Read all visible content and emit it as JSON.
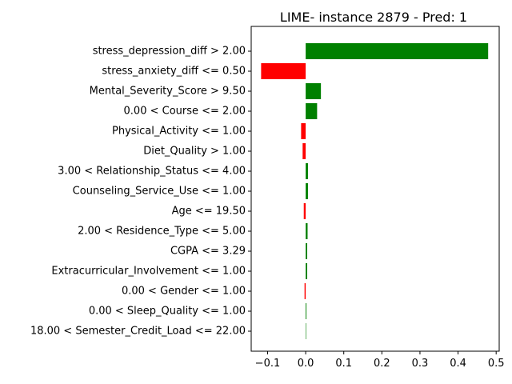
{
  "chart_data": {
    "type": "bar",
    "orientation": "horizontal",
    "title": "LIME- instance 2879 - Pred: 1",
    "xlabel": "",
    "ylabel": "",
    "xlim": [
      -0.143,
      0.508
    ],
    "xticks": [
      -0.1,
      0.0,
      0.1,
      0.2,
      0.3,
      0.4,
      0.5
    ],
    "xtick_labels": [
      "−0.1",
      "0.0",
      "0.1",
      "0.2",
      "0.3",
      "0.4",
      "0.5"
    ],
    "grid": false,
    "colors": {
      "positive": "#008000",
      "negative": "#ff0000"
    },
    "categories": [
      "stress_depression_diff > 2.00",
      "stress_anxiety_diff <= 0.50",
      "Mental_Severity_Score > 9.50",
      "0.00 < Course <= 2.00",
      "Physical_Activity <= 1.00",
      "Diet_Quality > 1.00",
      "3.00 < Relationship_Status <= 4.00",
      "Counseling_Service_Use <= 1.00",
      "Age <= 19.50",
      "2.00 < Residence_Type <= 5.00",
      "CGPA <= 3.29",
      "Extracurricular_Involvement <= 1.00",
      "0.00 < Gender <= 1.00",
      "0.00 < Sleep_Quality <= 1.00",
      "18.00 < Semester_Credit_Load <= 22.00"
    ],
    "values": [
      0.479,
      -0.117,
      0.04,
      0.03,
      -0.012,
      -0.008,
      0.006,
      0.006,
      -0.005,
      0.005,
      0.004,
      0.004,
      -0.003,
      0.002,
      0.0005
    ]
  }
}
